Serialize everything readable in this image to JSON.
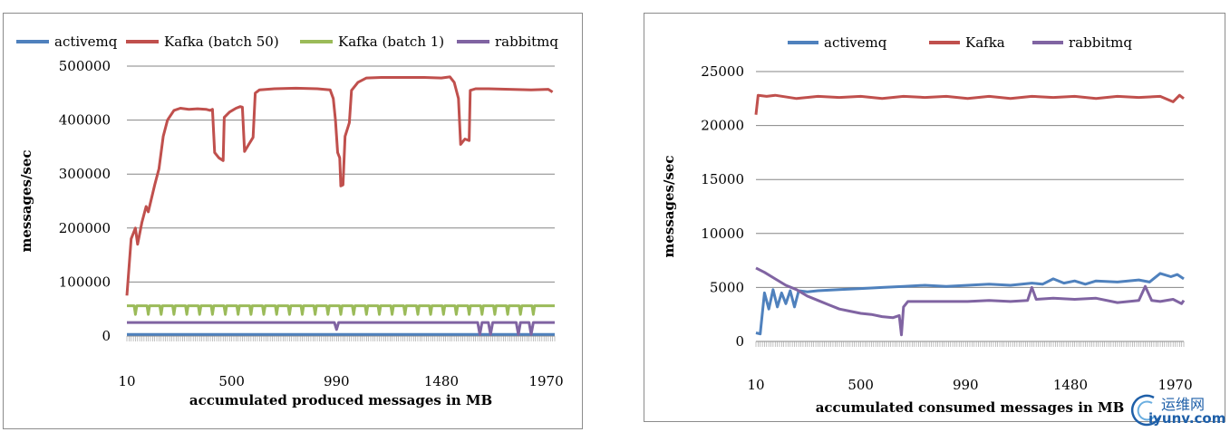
{
  "chart_data": [
    {
      "type": "line",
      "title": "",
      "xlabel": "accumulated produced messages in MB",
      "ylabel": "messages/sec",
      "ylim": [
        0,
        500000
      ],
      "yticks": [
        "0",
        "100000",
        "200000",
        "300000",
        "400000",
        "500000"
      ],
      "xlim": [
        10,
        2010
      ],
      "xticks": [
        10,
        500,
        990,
        1480,
        1970
      ],
      "xtick_labels": [
        "10",
        "500",
        "990",
        "1480",
        "1970"
      ],
      "grid": "horizontal",
      "legend_position": "top",
      "series": [
        {
          "name": "activemq",
          "color": "#4f81bd",
          "points": [
            [
              10,
              3000
            ],
            [
              2010,
              3000
            ]
          ]
        },
        {
          "name": "Kafka (batch 50)",
          "color": "#c0504d",
          "points": [
            [
              10,
              75000
            ],
            [
              30,
              180000
            ],
            [
              50,
              200000
            ],
            [
              60,
              170000
            ],
            [
              80,
              210000
            ],
            [
              100,
              240000
            ],
            [
              110,
              230000
            ],
            [
              140,
              280000
            ],
            [
              160,
              310000
            ],
            [
              180,
              370000
            ],
            [
              200,
              400000
            ],
            [
              230,
              418000
            ],
            [
              260,
              422000
            ],
            [
              300,
              420000
            ],
            [
              340,
              421000
            ],
            [
              380,
              420000
            ],
            [
              400,
              418000
            ],
            [
              410,
              420000
            ],
            [
              420,
              340000
            ],
            [
              440,
              330000
            ],
            [
              460,
              325000
            ],
            [
              465,
              405000
            ],
            [
              490,
              415000
            ],
            [
              520,
              422000
            ],
            [
              540,
              425000
            ],
            [
              550,
              424000
            ],
            [
              560,
              342000
            ],
            [
              580,
              355000
            ],
            [
              600,
              368000
            ],
            [
              610,
              450000
            ],
            [
              630,
              456000
            ],
            [
              700,
              458000
            ],
            [
              800,
              459000
            ],
            [
              900,
              458000
            ],
            [
              960,
              456000
            ],
            [
              975,
              440000
            ],
            [
              985,
              400000
            ],
            [
              995,
              340000
            ],
            [
              1005,
              330000
            ],
            [
              1010,
              278000
            ],
            [
              1020,
              280000
            ],
            [
              1030,
              370000
            ],
            [
              1050,
              395000
            ],
            [
              1060,
              455000
            ],
            [
              1090,
              470000
            ],
            [
              1130,
              478000
            ],
            [
              1200,
              479000
            ],
            [
              1300,
              479000
            ],
            [
              1400,
              479000
            ],
            [
              1480,
              478000
            ],
            [
              1520,
              480000
            ],
            [
              1540,
              470000
            ],
            [
              1560,
              440000
            ],
            [
              1570,
              355000
            ],
            [
              1590,
              365000
            ],
            [
              1610,
              362000
            ],
            [
              1615,
              455000
            ],
            [
              1640,
              458000
            ],
            [
              1700,
              458000
            ],
            [
              1800,
              457000
            ],
            [
              1900,
              456000
            ],
            [
              1980,
              457000
            ],
            [
              2000,
              452000
            ]
          ]
        },
        {
          "name": "Kafka (batch 1)",
          "color": "#9bbb59",
          "base": 56000,
          "dip": 40000,
          "dips_x": [
            50,
            110,
            170,
            230,
            290,
            350,
            410,
            470,
            530,
            590,
            650,
            710,
            770,
            830,
            890,
            950,
            1010,
            1070,
            1130,
            1190,
            1250,
            1310,
            1370,
            1430,
            1490,
            1550,
            1610,
            1670,
            1730,
            1790,
            1850,
            1910
          ]
        },
        {
          "name": "rabbitmq",
          "color": "#8064a2",
          "points": [
            [
              10,
              25000
            ],
            [
              200,
              25000
            ],
            [
              400,
              25000
            ],
            [
              600,
              25000
            ],
            [
              800,
              25000
            ],
            [
              980,
              25000
            ],
            [
              990,
              12000
            ],
            [
              1000,
              25000
            ],
            [
              1200,
              25000
            ],
            [
              1400,
              25000
            ],
            [
              1600,
              25000
            ],
            [
              1650,
              25000
            ],
            [
              1660,
              3000
            ],
            [
              1670,
              25000
            ],
            [
              1700,
              25000
            ],
            [
              1710,
              3000
            ],
            [
              1720,
              25000
            ],
            [
              1830,
              25000
            ],
            [
              1840,
              3000
            ],
            [
              1850,
              25000
            ],
            [
              1890,
              25000
            ],
            [
              1900,
              3000
            ],
            [
              1910,
              25000
            ],
            [
              2010,
              25000
            ]
          ]
        }
      ]
    },
    {
      "type": "line",
      "title": "",
      "xlabel": "accumulated consumed messages in MB",
      "ylabel": "messages/sec",
      "ylim": [
        0,
        25000
      ],
      "yticks": [
        "0",
        "5000",
        "10000",
        "15000",
        "20000",
        "25000"
      ],
      "xlim": [
        10,
        2010
      ],
      "xticks": [
        10,
        500,
        990,
        1480,
        1970
      ],
      "xtick_labels": [
        "10",
        "500",
        "990",
        "1480",
        "1970"
      ],
      "grid": "horizontal",
      "legend_position": "top",
      "series": [
        {
          "name": "activemq",
          "color": "#4f81bd",
          "points": [
            [
              10,
              800
            ],
            [
              30,
              700
            ],
            [
              50,
              4500
            ],
            [
              70,
              3000
            ],
            [
              90,
              4800
            ],
            [
              110,
              3200
            ],
            [
              130,
              4500
            ],
            [
              150,
              3500
            ],
            [
              170,
              4700
            ],
            [
              190,
              3200
            ],
            [
              210,
              4700
            ],
            [
              250,
              4600
            ],
            [
              300,
              4700
            ],
            [
              400,
              4800
            ],
            [
              500,
              4900
            ],
            [
              600,
              5000
            ],
            [
              700,
              5100
            ],
            [
              800,
              5200
            ],
            [
              900,
              5100
            ],
            [
              1000,
              5200
            ],
            [
              1100,
              5300
            ],
            [
              1200,
              5200
            ],
            [
              1300,
              5400
            ],
            [
              1350,
              5300
            ],
            [
              1400,
              5800
            ],
            [
              1450,
              5400
            ],
            [
              1500,
              5600
            ],
            [
              1550,
              5300
            ],
            [
              1600,
              5600
            ],
            [
              1700,
              5500
            ],
            [
              1800,
              5700
            ],
            [
              1850,
              5500
            ],
            [
              1900,
              6300
            ],
            [
              1950,
              6000
            ],
            [
              1980,
              6200
            ],
            [
              2010,
              5800
            ]
          ]
        },
        {
          "name": "Kafka",
          "color": "#c0504d",
          "points": [
            [
              10,
              21000
            ],
            [
              20,
              22800
            ],
            [
              60,
              22700
            ],
            [
              100,
              22800
            ],
            [
              200,
              22500
            ],
            [
              300,
              22700
            ],
            [
              400,
              22600
            ],
            [
              500,
              22700
            ],
            [
              600,
              22500
            ],
            [
              700,
              22700
            ],
            [
              800,
              22600
            ],
            [
              900,
              22700
            ],
            [
              1000,
              22500
            ],
            [
              1100,
              22700
            ],
            [
              1200,
              22500
            ],
            [
              1300,
              22700
            ],
            [
              1400,
              22600
            ],
            [
              1500,
              22700
            ],
            [
              1600,
              22500
            ],
            [
              1700,
              22700
            ],
            [
              1800,
              22600
            ],
            [
              1900,
              22700
            ],
            [
              1960,
              22200
            ],
            [
              1990,
              22800
            ],
            [
              2010,
              22500
            ]
          ]
        },
        {
          "name": "rabbitmq",
          "color": "#8064a2",
          "points": [
            [
              10,
              6800
            ],
            [
              50,
              6400
            ],
            [
              100,
              5800
            ],
            [
              150,
              5200
            ],
            [
              200,
              4800
            ],
            [
              250,
              4200
            ],
            [
              300,
              3800
            ],
            [
              350,
              3400
            ],
            [
              400,
              3000
            ],
            [
              450,
              2800
            ],
            [
              500,
              2600
            ],
            [
              550,
              2500
            ],
            [
              600,
              2300
            ],
            [
              650,
              2200
            ],
            [
              680,
              2400
            ],
            [
              690,
              600
            ],
            [
              700,
              3200
            ],
            [
              720,
              3700
            ],
            [
              800,
              3700
            ],
            [
              900,
              3700
            ],
            [
              1000,
              3700
            ],
            [
              1100,
              3800
            ],
            [
              1200,
              3700
            ],
            [
              1280,
              3800
            ],
            [
              1300,
              5000
            ],
            [
              1320,
              3900
            ],
            [
              1400,
              4000
            ],
            [
              1500,
              3900
            ],
            [
              1600,
              4000
            ],
            [
              1700,
              3600
            ],
            [
              1800,
              3800
            ],
            [
              1830,
              5100
            ],
            [
              1860,
              3800
            ],
            [
              1900,
              3700
            ],
            [
              1960,
              3900
            ],
            [
              2000,
              3500
            ],
            [
              2010,
              3800
            ]
          ]
        }
      ]
    }
  ],
  "watermark": {
    "cn": "运维网",
    "en": "iyunv.com"
  }
}
